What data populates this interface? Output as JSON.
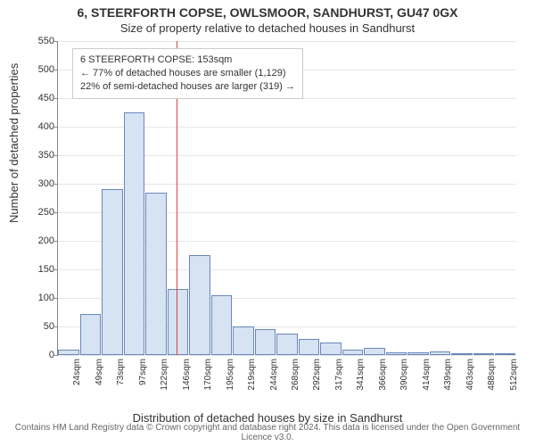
{
  "title_line1": "6, STEERFORTH COPSE, OWLSMOOR, SANDHURST, GU47 0GX",
  "title_line2": "Size of property relative to detached houses in Sandhurst",
  "y_axis_label": "Number of detached properties",
  "x_axis_label": "Distribution of detached houses by size in Sandhurst",
  "footer_text": "Contains HM Land Registry data © Crown copyright and database right 2024. This data is licensed under the Open Government Licence v3.0.",
  "chart": {
    "type": "bar",
    "y_min": 0,
    "y_max": 550,
    "y_ticks": [
      0,
      50,
      100,
      150,
      200,
      250,
      300,
      350,
      400,
      450,
      500,
      550
    ],
    "grid_color": "#e6e6e6",
    "tick_fontsize": 11,
    "background_color": "#ffffff",
    "bar_fill_color": "#d6e3f3",
    "bar_border_color": "#6a87b8",
    "categories": [
      "24sqm",
      "49sqm",
      "73sqm",
      "97sqm",
      "122sqm",
      "146sqm",
      "170sqm",
      "195sqm",
      "219sqm",
      "244sqm",
      "268sqm",
      "292sqm",
      "317sqm",
      "341sqm",
      "366sqm",
      "390sqm",
      "414sqm",
      "439sqm",
      "463sqm",
      "488sqm",
      "512sqm"
    ],
    "values": [
      10,
      72,
      290,
      425,
      285,
      115,
      175,
      105,
      50,
      45,
      38,
      28,
      22,
      10,
      12,
      5,
      5,
      6,
      2,
      0,
      3
    ],
    "bar_width_ratio": 0.96,
    "reference_line": {
      "x_value": 153,
      "x_min": 24,
      "x_max": 524,
      "color": "#d94343",
      "label_text": "153sqm"
    },
    "annotation": {
      "line1": "6 STEERFORTH COPSE: 153sqm",
      "line2": "← 77% of detached houses are smaller (1,129)",
      "line3": "22% of semi-detached houses are larger (319) →"
    }
  }
}
